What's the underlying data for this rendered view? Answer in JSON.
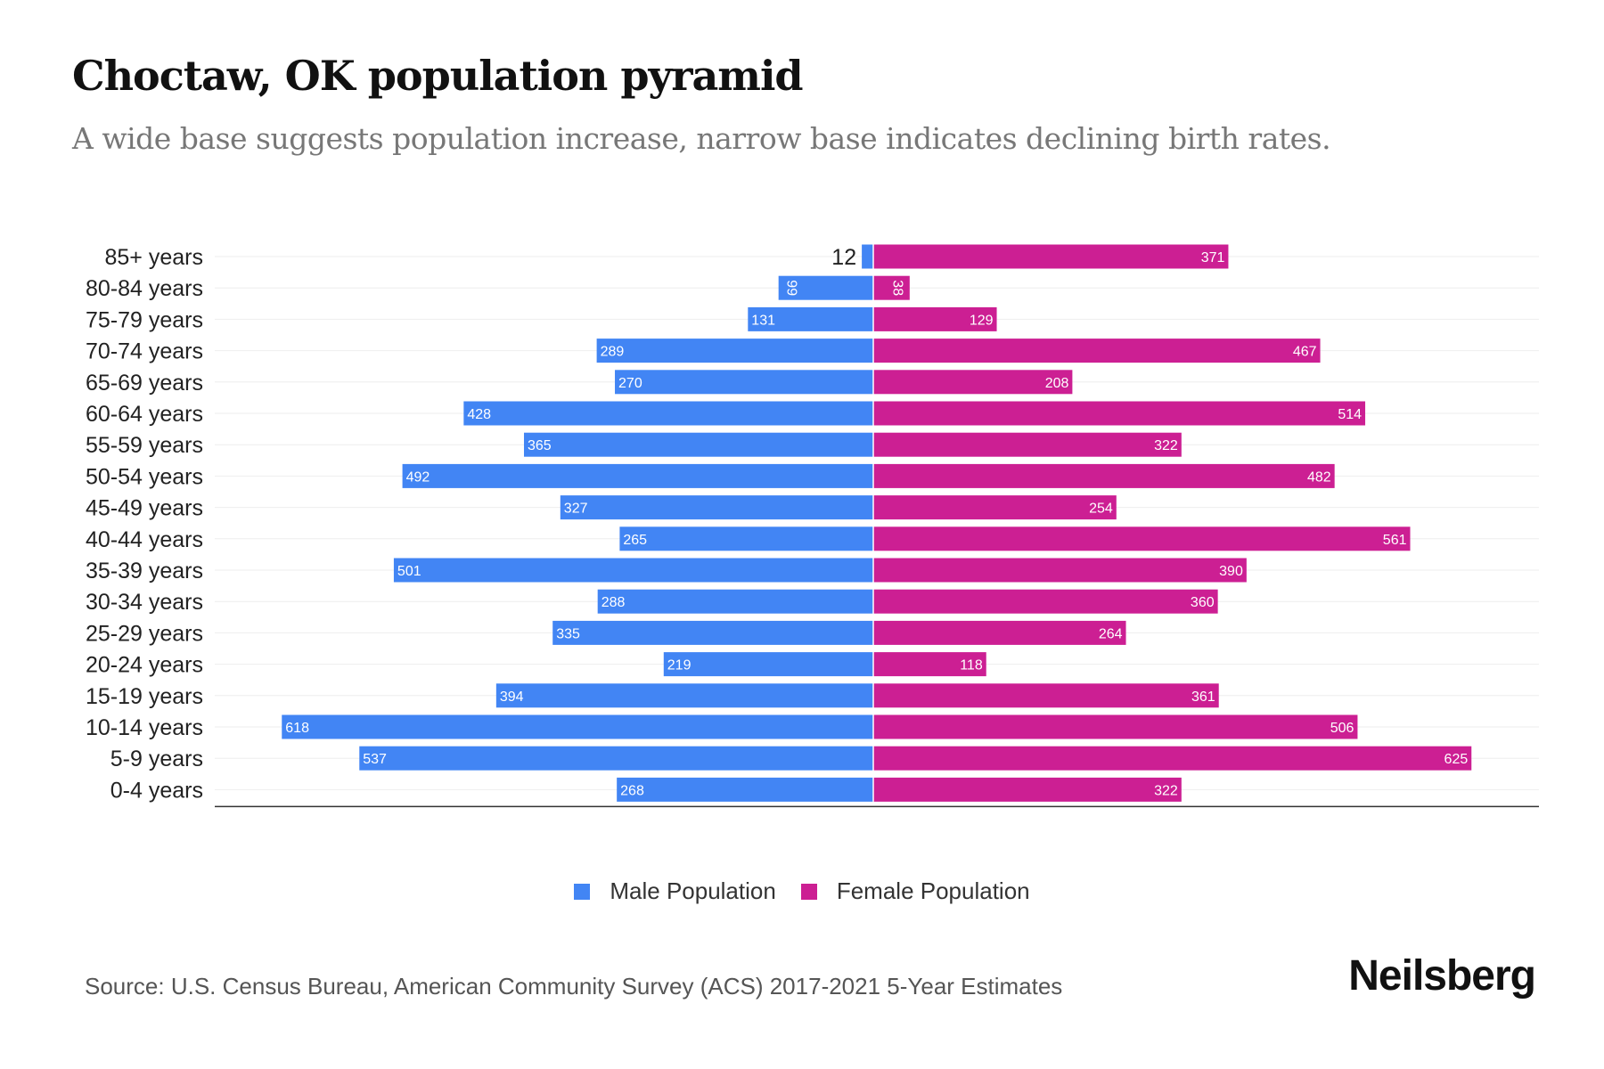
{
  "chart_data": {
    "type": "bar",
    "orientation": "horizontal-pyramid",
    "title": "Choctaw, OK population pyramid",
    "subtitle": "A wide base suggests population increase, narrow base indicates declining birth rates.",
    "categories": [
      "85+ years",
      "80-84 years",
      "75-79 years",
      "70-74 years",
      "65-69 years",
      "60-64 years",
      "55-59 years",
      "50-54 years",
      "45-49 years",
      "40-44 years",
      "35-39 years",
      "30-34 years",
      "25-29 years",
      "20-24 years",
      "15-19 years",
      "10-14 years",
      "5-9 years",
      "0-4 years"
    ],
    "series": [
      {
        "name": "Male Population",
        "color": "#4285f4",
        "values": [
          12,
          99,
          131,
          289,
          270,
          428,
          365,
          492,
          327,
          265,
          501,
          288,
          335,
          219,
          394,
          618,
          537,
          268
        ]
      },
      {
        "name": "Female Population",
        "color": "#cc1f93",
        "values": [
          371,
          38,
          129,
          467,
          208,
          514,
          322,
          482,
          254,
          561,
          390,
          360,
          264,
          118,
          361,
          506,
          625,
          322
        ]
      }
    ],
    "legend_position": "bottom-center",
    "grid": true
  },
  "footer": {
    "source": "Source: U.S. Census Bureau, American Community Survey (ACS) 2017-2021 5-Year Estimates",
    "logo": "Neilsberg"
  }
}
